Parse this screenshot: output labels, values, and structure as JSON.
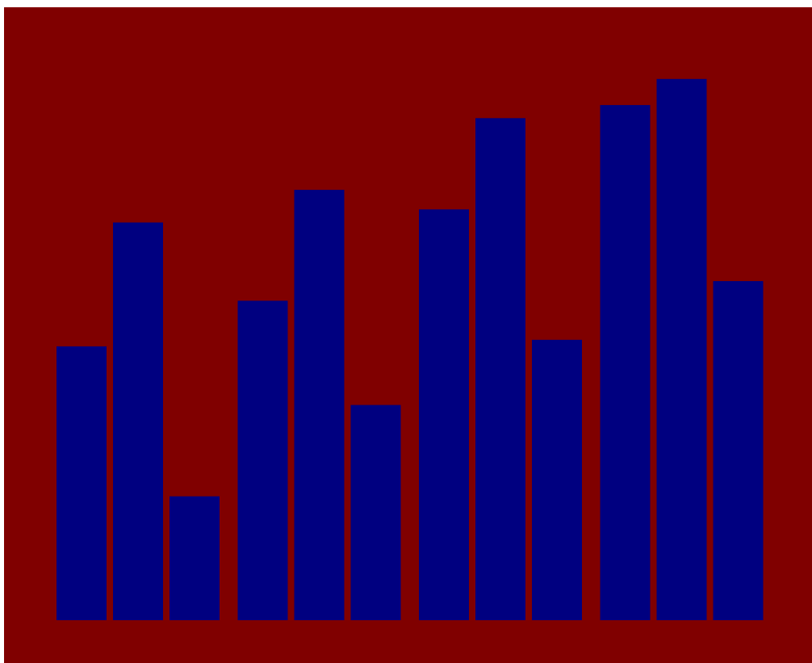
{
  "colors": {
    "background": "#800000",
    "bar": "#000080"
  },
  "chart_data": {
    "type": "bar",
    "title": "",
    "xlabel": "",
    "ylabel": "",
    "group_count": 4,
    "bars_per_group": 3,
    "values": [
      4.2,
      6.1,
      1.9,
      4.9,
      6.6,
      3.3,
      6.3,
      7.7,
      4.3,
      7.9,
      8.3,
      5.2
    ],
    "ylim": [
      0,
      9.4
    ],
    "grid": false,
    "legend": "none"
  }
}
